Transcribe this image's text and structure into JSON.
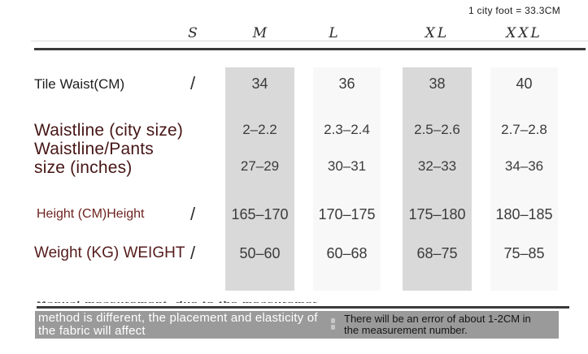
{
  "note_top_right": "1 city foot = 33.3CM",
  "size_chart": {
    "columns": [
      "S",
      "M",
      "L",
      "XL",
      "XXL"
    ],
    "rows": [
      {
        "label": "Tile Waist(CM)",
        "values": [
          "/",
          "34",
          "36",
          "38",
          "40"
        ]
      },
      {
        "label_lines": [
          "Waistline (city size)",
          "Waistline/Pants",
          "size (inches)"
        ],
        "values_upper": [
          "",
          "2–2.2",
          "2.3–2.4",
          "2.5–2.6",
          "2.7–2.8"
        ],
        "values_lower": [
          "",
          "27–29",
          "30–31",
          "32–33",
          "34–36"
        ]
      },
      {
        "label": "Height (CM)Height",
        "values": [
          "/",
          "165–170",
          "170–175",
          "175–180",
          "180–185"
        ]
      },
      {
        "label": "Weight (KG) WEIGHT",
        "values": [
          "/",
          "50–60",
          "60–68",
          "68–75",
          "75–85"
        ]
      }
    ]
  },
  "footer": {
    "squished_line": "Manual measurement, due to the measurement",
    "banner_left_lines": [
      "method is different, the placement and elasticity of",
      "the fabric will affect"
    ],
    "banner_right_lines": [
      "There will be an error of about 1-2CM in",
      "the measurement number."
    ]
  },
  "colors": {
    "band_gray": "#d9d9d9",
    "band_light": "#f8f8f8",
    "rule_dark": "#3a3a3a",
    "banner_gray": "#9a9a9a",
    "label_maroon_dark": "#471616",
    "label_maroon_height": "#6e2420",
    "label_maroon_weight": "#551b1b"
  }
}
